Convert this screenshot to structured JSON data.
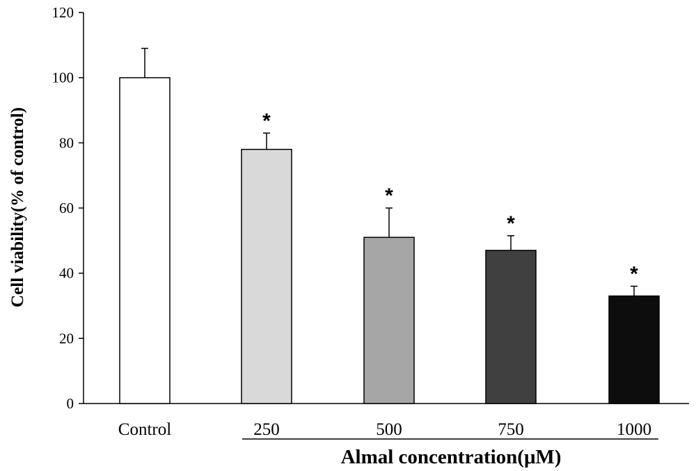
{
  "chart_data": {
    "type": "bar",
    "categories": [
      "Control",
      "250",
      "500",
      "750",
      "1000"
    ],
    "values": [
      100,
      78,
      51,
      47,
      33
    ],
    "errors": [
      9,
      5,
      9,
      4.5,
      3
    ],
    "significance": [
      "",
      "*",
      "*",
      "*",
      "*"
    ],
    "bar_colors": [
      "#ffffff",
      "#d9d9d9",
      "#a6a6a6",
      "#404040",
      "#0d0d0d"
    ],
    "ylabel": "Cell viability(%  of control)",
    "xlabel": "Almal concentration(μM)",
    "ylim": [
      0,
      120
    ],
    "yticks": [
      0,
      20,
      40,
      60,
      80,
      100,
      120
    ],
    "grid": false,
    "legend": "none"
  }
}
